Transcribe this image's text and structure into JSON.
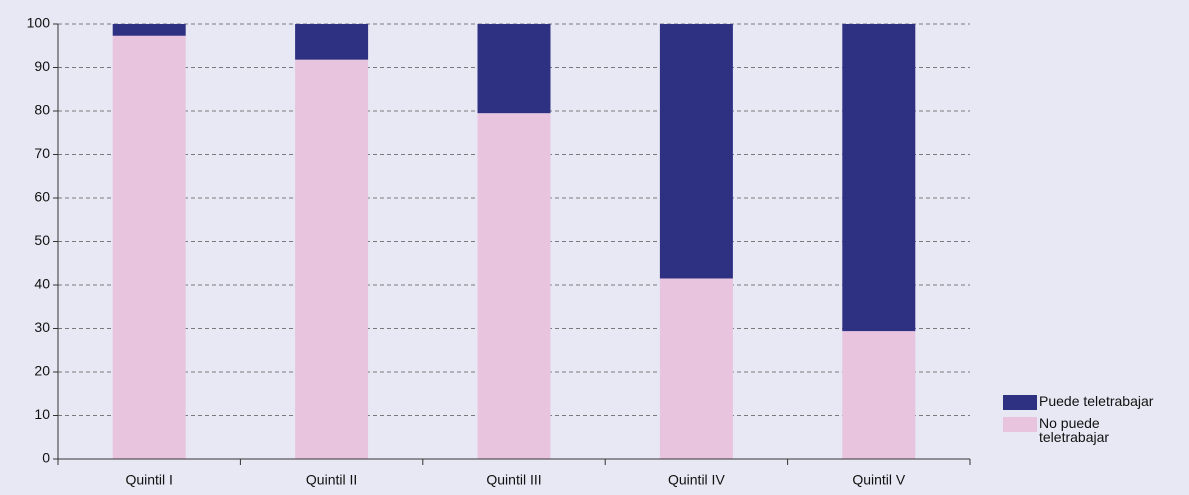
{
  "chart_data": {
    "type": "stacked_bar",
    "categories": [
      "Quintil I",
      "Quintil II",
      "Quintil III",
      "Quintil IV",
      "Quintil V"
    ],
    "series": [
      {
        "name": "Puede teletrabajar",
        "color": "#2e3182",
        "values": [
          2.7,
          8.2,
          20.5,
          58.5,
          70.6
        ]
      },
      {
        "name": "No puede teletrabajar",
        "color": "#e8c4df",
        "values": [
          97.3,
          91.8,
          79.5,
          41.5,
          29.4
        ]
      }
    ],
    "ylim": [
      0,
      100
    ],
    "yticks": [
      0,
      10,
      20,
      30,
      40,
      50,
      60,
      70,
      80,
      90,
      100
    ],
    "grid": true
  }
}
